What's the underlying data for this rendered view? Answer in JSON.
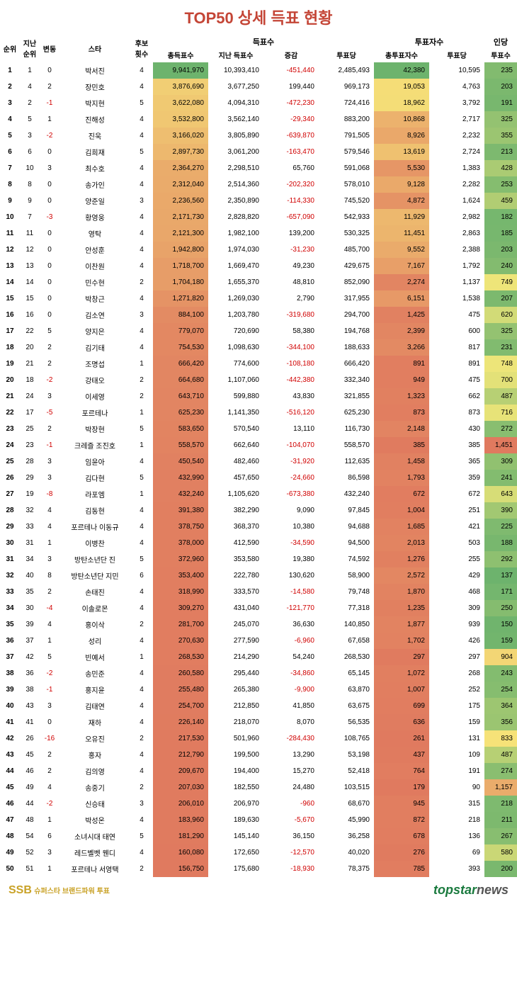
{
  "title": "TOP50 상세 득표 현황",
  "title_color": "#c44536",
  "headers": {
    "rank": "순위",
    "prev": "지난\n순위",
    "change": "변동",
    "star": "스타",
    "cand": "후보\n횟수",
    "votes_group": "득표수",
    "total": "총득표수",
    "last": "지난 득표수",
    "diff": "증감",
    "per": "투표당",
    "voters_group": "투표자수",
    "voters": "총투표자수",
    "vper": "투표당",
    "pp_group": "인당",
    "pp": "투표수"
  },
  "footer": {
    "ssb": "SSB",
    "ssb_text": "슈퍼스타 브랜드파워 투표",
    "ts1": "topstar",
    "ts2": "news"
  },
  "gradient": {
    "total": [
      "#6db36d",
      "#f7e97a",
      "#e07a5f"
    ],
    "voters": [
      "#6db36d",
      "#f7e97a",
      "#e07a5f"
    ],
    "pp": [
      "#e07a5f",
      "#f7e97a",
      "#6db36d"
    ]
  },
  "rows": [
    {
      "rank": 1,
      "prev": 1,
      "chg": 0,
      "star": "박서진",
      "cand": 4,
      "total": 9941970,
      "last": 10393410,
      "diff": -451440,
      "per": 2485493,
      "voters": 42380,
      "vper": 10595,
      "pp": 235
    },
    {
      "rank": 2,
      "prev": 4,
      "chg": 2,
      "star": "장민호",
      "cand": 4,
      "total": 3876690,
      "last": 3677250,
      "diff": 199440,
      "per": 969173,
      "voters": 19053,
      "vper": 4763,
      "pp": 203
    },
    {
      "rank": 3,
      "prev": 2,
      "chg": -1,
      "star": "박지현",
      "cand": 5,
      "total": 3622080,
      "last": 4094310,
      "diff": -472230,
      "per": 724416,
      "voters": 18962,
      "vper": 3792,
      "pp": 191
    },
    {
      "rank": 4,
      "prev": 5,
      "chg": 1,
      "star": "진해성",
      "cand": 4,
      "total": 3532800,
      "last": 3562140,
      "diff": -29340,
      "per": 883200,
      "voters": 10868,
      "vper": 2717,
      "pp": 325
    },
    {
      "rank": 5,
      "prev": 3,
      "chg": -2,
      "star": "진욱",
      "cand": 4,
      "total": 3166020,
      "last": 3805890,
      "diff": -639870,
      "per": 791505,
      "voters": 8926,
      "vper": 2232,
      "pp": 355
    },
    {
      "rank": 6,
      "prev": 6,
      "chg": 0,
      "star": "김희재",
      "cand": 5,
      "total": 2897730,
      "last": 3061200,
      "diff": -163470,
      "per": 579546,
      "voters": 13619,
      "vper": 2724,
      "pp": 213
    },
    {
      "rank": 7,
      "prev": 10,
      "chg": 3,
      "star": "최수호",
      "cand": 4,
      "total": 2364270,
      "last": 2298510,
      "diff": 65760,
      "per": 591068,
      "voters": 5530,
      "vper": 1383,
      "pp": 428
    },
    {
      "rank": 8,
      "prev": 8,
      "chg": 0,
      "star": "송가인",
      "cand": 4,
      "total": 2312040,
      "last": 2514360,
      "diff": -202320,
      "per": 578010,
      "voters": 9128,
      "vper": 2282,
      "pp": 253
    },
    {
      "rank": 9,
      "prev": 9,
      "chg": 0,
      "star": "양준일",
      "cand": 3,
      "total": 2236560,
      "last": 2350890,
      "diff": -114330,
      "per": 745520,
      "voters": 4872,
      "vper": 1624,
      "pp": 459
    },
    {
      "rank": 10,
      "prev": 7,
      "chg": -3,
      "star": "황영웅",
      "cand": 4,
      "total": 2171730,
      "last": 2828820,
      "diff": -657090,
      "per": 542933,
      "voters": 11929,
      "vper": 2982,
      "pp": 182
    },
    {
      "rank": 11,
      "prev": 11,
      "chg": 0,
      "star": "영탁",
      "cand": 4,
      "total": 2121300,
      "last": 1982100,
      "diff": 139200,
      "per": 530325,
      "voters": 11451,
      "vper": 2863,
      "pp": 185
    },
    {
      "rank": 12,
      "prev": 12,
      "chg": 0,
      "star": "안성훈",
      "cand": 4,
      "total": 1942800,
      "last": 1974030,
      "diff": -31230,
      "per": 485700,
      "voters": 9552,
      "vper": 2388,
      "pp": 203
    },
    {
      "rank": 13,
      "prev": 13,
      "chg": 0,
      "star": "이찬원",
      "cand": 4,
      "total": 1718700,
      "last": 1669470,
      "diff": 49230,
      "per": 429675,
      "voters": 7167,
      "vper": 1792,
      "pp": 240
    },
    {
      "rank": 14,
      "prev": 14,
      "chg": 0,
      "star": "민수현",
      "cand": 2,
      "total": 1704180,
      "last": 1655370,
      "diff": 48810,
      "per": 852090,
      "voters": 2274,
      "vper": 1137,
      "pp": 749
    },
    {
      "rank": 15,
      "prev": 15,
      "chg": 0,
      "star": "박창근",
      "cand": 4,
      "total": 1271820,
      "last": 1269030,
      "diff": 2790,
      "per": 317955,
      "voters": 6151,
      "vper": 1538,
      "pp": 207
    },
    {
      "rank": 16,
      "prev": 16,
      "chg": 0,
      "star": "김소연",
      "cand": 3,
      "total": 884100,
      "last": 1203780,
      "diff": -319680,
      "per": 294700,
      "voters": 1425,
      "vper": 475,
      "pp": 620
    },
    {
      "rank": 17,
      "prev": 22,
      "chg": 5,
      "star": "양지은",
      "cand": 4,
      "total": 779070,
      "last": 720690,
      "diff": 58380,
      "per": 194768,
      "voters": 2399,
      "vper": 600,
      "pp": 325
    },
    {
      "rank": 18,
      "prev": 20,
      "chg": 2,
      "star": "김기태",
      "cand": 4,
      "total": 754530,
      "last": 1098630,
      "diff": -344100,
      "per": 188633,
      "voters": 3266,
      "vper": 817,
      "pp": 231
    },
    {
      "rank": 19,
      "prev": 21,
      "chg": 2,
      "star": "조명섭",
      "cand": 1,
      "total": 666420,
      "last": 774600,
      "diff": -108180,
      "per": 666420,
      "voters": 891,
      "vper": 891,
      "pp": 748
    },
    {
      "rank": 20,
      "prev": 18,
      "chg": -2,
      "star": "강태오",
      "cand": 2,
      "total": 664680,
      "last": 1107060,
      "diff": -442380,
      "per": 332340,
      "voters": 949,
      "vper": 475,
      "pp": 700
    },
    {
      "rank": 21,
      "prev": 24,
      "chg": 3,
      "star": "이세영",
      "cand": 2,
      "total": 643710,
      "last": 599880,
      "diff": 43830,
      "per": 321855,
      "voters": 1323,
      "vper": 662,
      "pp": 487
    },
    {
      "rank": 22,
      "prev": 17,
      "chg": -5,
      "star": "포르테나",
      "cand": 1,
      "total": 625230,
      "last": 1141350,
      "diff": -516120,
      "per": 625230,
      "voters": 873,
      "vper": 873,
      "pp": 716
    },
    {
      "rank": 23,
      "prev": 25,
      "chg": 2,
      "star": "박장현",
      "cand": 5,
      "total": 583650,
      "last": 570540,
      "diff": 13110,
      "per": 116730,
      "voters": 2148,
      "vper": 430,
      "pp": 272
    },
    {
      "rank": 24,
      "prev": 23,
      "chg": -1,
      "star": "크레즐 조진호",
      "cand": 1,
      "total": 558570,
      "last": 662640,
      "diff": -104070,
      "per": 558570,
      "voters": 385,
      "vper": 385,
      "pp": 1451
    },
    {
      "rank": 25,
      "prev": 28,
      "chg": 3,
      "star": "임윤아",
      "cand": 4,
      "total": 450540,
      "last": 482460,
      "diff": -31920,
      "per": 112635,
      "voters": 1458,
      "vper": 365,
      "pp": 309
    },
    {
      "rank": 26,
      "prev": 29,
      "chg": 3,
      "star": "김다현",
      "cand": 5,
      "total": 432990,
      "last": 457650,
      "diff": -24660,
      "per": 86598,
      "voters": 1793,
      "vper": 359,
      "pp": 241
    },
    {
      "rank": 27,
      "prev": 19,
      "chg": -8,
      "star": "라포엠",
      "cand": 1,
      "total": 432240,
      "last": 1105620,
      "diff": -673380,
      "per": 432240,
      "voters": 672,
      "vper": 672,
      "pp": 643
    },
    {
      "rank": 28,
      "prev": 32,
      "chg": 4,
      "star": "김동현",
      "cand": 4,
      "total": 391380,
      "last": 382290,
      "diff": 9090,
      "per": 97845,
      "voters": 1004,
      "vper": 251,
      "pp": 390
    },
    {
      "rank": 29,
      "prev": 33,
      "chg": 4,
      "star": "포르테나 이동규",
      "cand": 4,
      "total": 378750,
      "last": 368370,
      "diff": 10380,
      "per": 94688,
      "voters": 1685,
      "vper": 421,
      "pp": 225
    },
    {
      "rank": 30,
      "prev": 31,
      "chg": 1,
      "star": "이병찬",
      "cand": 4,
      "total": 378000,
      "last": 412590,
      "diff": -34590,
      "per": 94500,
      "voters": 2013,
      "vper": 503,
      "pp": 188
    },
    {
      "rank": 31,
      "prev": 34,
      "chg": 3,
      "star": "방탄소년단 진",
      "cand": 5,
      "total": 372960,
      "last": 353580,
      "diff": 19380,
      "per": 74592,
      "voters": 1276,
      "vper": 255,
      "pp": 292
    },
    {
      "rank": 32,
      "prev": 40,
      "chg": 8,
      "star": "방탄소년단 지민",
      "cand": 6,
      "total": 353400,
      "last": 222780,
      "diff": 130620,
      "per": 58900,
      "voters": 2572,
      "vper": 429,
      "pp": 137
    },
    {
      "rank": 33,
      "prev": 35,
      "chg": 2,
      "star": "손태진",
      "cand": 4,
      "total": 318990,
      "last": 333570,
      "diff": -14580,
      "per": 79748,
      "voters": 1870,
      "vper": 468,
      "pp": 171
    },
    {
      "rank": 34,
      "prev": 30,
      "chg": -4,
      "star": "이솔로몬",
      "cand": 4,
      "total": 309270,
      "last": 431040,
      "diff": -121770,
      "per": 77318,
      "voters": 1235,
      "vper": 309,
      "pp": 250
    },
    {
      "rank": 35,
      "prev": 39,
      "chg": 4,
      "star": "홍이삭",
      "cand": 2,
      "total": 281700,
      "last": 245070,
      "diff": 36630,
      "per": 140850,
      "voters": 1877,
      "vper": 939,
      "pp": 150
    },
    {
      "rank": 36,
      "prev": 37,
      "chg": 1,
      "star": "성리",
      "cand": 4,
      "total": 270630,
      "last": 277590,
      "diff": -6960,
      "per": 67658,
      "voters": 1702,
      "vper": 426,
      "pp": 159
    },
    {
      "rank": 37,
      "prev": 42,
      "chg": 5,
      "star": "빈예서",
      "cand": 1,
      "total": 268530,
      "last": 214290,
      "diff": 54240,
      "per": 268530,
      "voters": 297,
      "vper": 297,
      "pp": 904
    },
    {
      "rank": 38,
      "prev": 36,
      "chg": -2,
      "star": "송민준",
      "cand": 4,
      "total": 260580,
      "last": 295440,
      "diff": -34860,
      "per": 65145,
      "voters": 1072,
      "vper": 268,
      "pp": 243
    },
    {
      "rank": 39,
      "prev": 38,
      "chg": -1,
      "star": "홍지윤",
      "cand": 4,
      "total": 255480,
      "last": 265380,
      "diff": -9900,
      "per": 63870,
      "voters": 1007,
      "vper": 252,
      "pp": 254
    },
    {
      "rank": 40,
      "prev": 43,
      "chg": 3,
      "star": "김태연",
      "cand": 4,
      "total": 254700,
      "last": 212850,
      "diff": 41850,
      "per": 63675,
      "voters": 699,
      "vper": 175,
      "pp": 364
    },
    {
      "rank": 41,
      "prev": 41,
      "chg": 0,
      "star": "재하",
      "cand": 4,
      "total": 226140,
      "last": 218070,
      "diff": 8070,
      "per": 56535,
      "voters": 636,
      "vper": 159,
      "pp": 356
    },
    {
      "rank": 42,
      "prev": 26,
      "chg": -16,
      "star": "오유진",
      "cand": 2,
      "total": 217530,
      "last": 501960,
      "diff": -284430,
      "per": 108765,
      "voters": 261,
      "vper": 131,
      "pp": 833
    },
    {
      "rank": 43,
      "prev": 45,
      "chg": 2,
      "star": "홍자",
      "cand": 4,
      "total": 212790,
      "last": 199500,
      "diff": 13290,
      "per": 53198,
      "voters": 437,
      "vper": 109,
      "pp": 487
    },
    {
      "rank": 44,
      "prev": 46,
      "chg": 2,
      "star": "김의영",
      "cand": 4,
      "total": 209670,
      "last": 194400,
      "diff": 15270,
      "per": 52418,
      "voters": 764,
      "vper": 191,
      "pp": 274
    },
    {
      "rank": 45,
      "prev": 49,
      "chg": 4,
      "star": "송중기",
      "cand": 2,
      "total": 207030,
      "last": 182550,
      "diff": 24480,
      "per": 103515,
      "voters": 179,
      "vper": 90,
      "pp": 1157
    },
    {
      "rank": 46,
      "prev": 44,
      "chg": -2,
      "star": "신승태",
      "cand": 3,
      "total": 206010,
      "last": 206970,
      "diff": -960,
      "per": 68670,
      "voters": 945,
      "vper": 315,
      "pp": 218
    },
    {
      "rank": 47,
      "prev": 48,
      "chg": 1,
      "star": "박성온",
      "cand": 4,
      "total": 183960,
      "last": 189630,
      "diff": -5670,
      "per": 45990,
      "voters": 872,
      "vper": 218,
      "pp": 211
    },
    {
      "rank": 48,
      "prev": 54,
      "chg": 6,
      "star": "소녀시대 태연",
      "cand": 5,
      "total": 181290,
      "last": 145140,
      "diff": 36150,
      "per": 36258,
      "voters": 678,
      "vper": 136,
      "pp": 267
    },
    {
      "rank": 49,
      "prev": 52,
      "chg": 3,
      "star": "레드벨벳 웬디",
      "cand": 4,
      "total": 160080,
      "last": 172650,
      "diff": -12570,
      "per": 40020,
      "voters": 276,
      "vper": 69,
      "pp": 580
    },
    {
      "rank": 50,
      "prev": 51,
      "chg": 1,
      "star": "포르테나 서영택",
      "cand": 2,
      "total": 156750,
      "last": 175680,
      "diff": -18930,
      "per": 78375,
      "voters": 785,
      "vper": 393,
      "pp": 200
    }
  ]
}
